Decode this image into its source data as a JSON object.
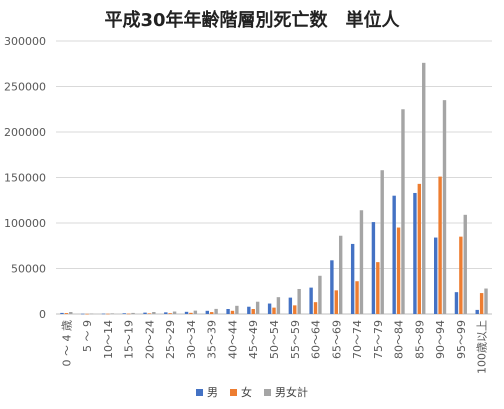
{
  "chart_data": {
    "type": "bar",
    "title": "平成30年年齢階層別死亡数　単位人",
    "categories": [
      "0 ～ 4 歳",
      "5 ～ 9",
      "10～14",
      "15～19",
      "20～24",
      "25～29",
      "30～34",
      "35～39",
      "40～44",
      "45～49",
      "50～54",
      "55～59",
      "60～64",
      "65～69",
      "70～74",
      "75～79",
      "80～84",
      "85～89",
      "90～94",
      "95～99",
      "100歳以上"
    ],
    "series": [
      {
        "name": "男",
        "color": "#4472C4",
        "values": [
          1200,
          300,
          400,
          800,
          1500,
          1800,
          2400,
          3500,
          5500,
          8000,
          11500,
          18000,
          29000,
          59000,
          77000,
          101000,
          130000,
          133000,
          84000,
          24000,
          4500
        ]
      },
      {
        "name": "女",
        "color": "#ED7D31",
        "values": [
          1000,
          200,
          300,
          400,
          700,
          900,
          1300,
          2100,
          3500,
          5500,
          7000,
          9500,
          13000,
          26000,
          36000,
          57000,
          95000,
          143000,
          151000,
          85000,
          23000
        ]
      },
      {
        "name": "男女計",
        "color": "#A5A5A5",
        "values": [
          2200,
          500,
          700,
          1200,
          2200,
          2700,
          3700,
          5600,
          9000,
          13500,
          18500,
          27500,
          42000,
          86000,
          114000,
          158000,
          225000,
          276000,
          235000,
          109000,
          28000
        ]
      }
    ],
    "yaxis": {
      "min": 0,
      "max": 300000,
      "ticks": [
        "0",
        "50000",
        "100000",
        "150000",
        "200000",
        "250000",
        "300000"
      ]
    },
    "grid": true,
    "legend_position": "bottom"
  }
}
